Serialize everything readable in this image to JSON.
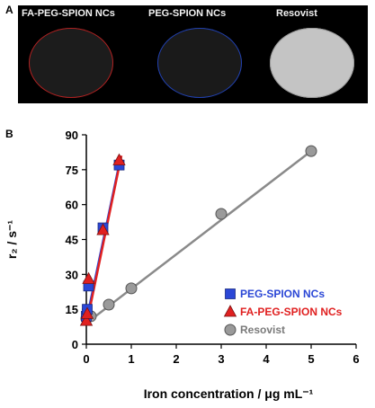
{
  "panel_a": {
    "letter": "A",
    "samples": [
      {
        "label": "FA-PEG-SPION NCs",
        "rim_color": "#b02020",
        "fill_color": "#1c1c1c"
      },
      {
        "label": "PEG-SPION NCs",
        "rim_color": "#2040b0",
        "fill_color": "#1a1a1a"
      },
      {
        "label": "Resovist",
        "rim_color": "#9a9a9a",
        "fill_color": "#c4c4c4"
      }
    ]
  },
  "panel_b": {
    "letter": "B"
  },
  "chart_data": {
    "type": "scatter",
    "xlabel": "Iron concentration / μg mL⁻¹",
    "ylabel": "r₂ / s⁻¹",
    "xlim": [
      0,
      6
    ],
    "ylim": [
      0,
      90
    ],
    "xticks": [
      "0",
      "1",
      "2",
      "3",
      "4",
      "5",
      "6"
    ],
    "yticks": [
      "0",
      "15",
      "30",
      "45",
      "60",
      "75",
      "90"
    ],
    "legend_position": "lower-right",
    "series": [
      {
        "name": "PEG-SPION NCs",
        "marker": "square",
        "color": "#2b47d6",
        "line_color": "#2b47d6",
        "points": [
          [
            0.0,
            12
          ],
          [
            0.02,
            15
          ],
          [
            0.05,
            25
          ],
          [
            0.37,
            50
          ],
          [
            0.73,
            77
          ]
        ],
        "fit": [
          [
            0.0,
            10
          ],
          [
            0.76,
            80
          ]
        ]
      },
      {
        "name": "FA-PEG-SPION NCs",
        "marker": "triangle",
        "color": "#e02020",
        "line_color": "#e02020",
        "points": [
          [
            0.0,
            10
          ],
          [
            0.02,
            13
          ],
          [
            0.05,
            28
          ],
          [
            0.37,
            49
          ],
          [
            0.73,
            79
          ]
        ],
        "fit": [
          [
            0.0,
            8
          ],
          [
            0.78,
            81
          ]
        ]
      },
      {
        "name": "Resovist",
        "marker": "circle",
        "color": "#9a9a9a",
        "line_color": "#8a8a8a",
        "points": [
          [
            0.0,
            11
          ],
          [
            0.1,
            12
          ],
          [
            0.5,
            17
          ],
          [
            1.0,
            24
          ],
          [
            3.0,
            56
          ],
          [
            5.0,
            83
          ]
        ],
        "fit": [
          [
            0.0,
            9
          ],
          [
            5.0,
            83
          ]
        ]
      }
    ]
  }
}
